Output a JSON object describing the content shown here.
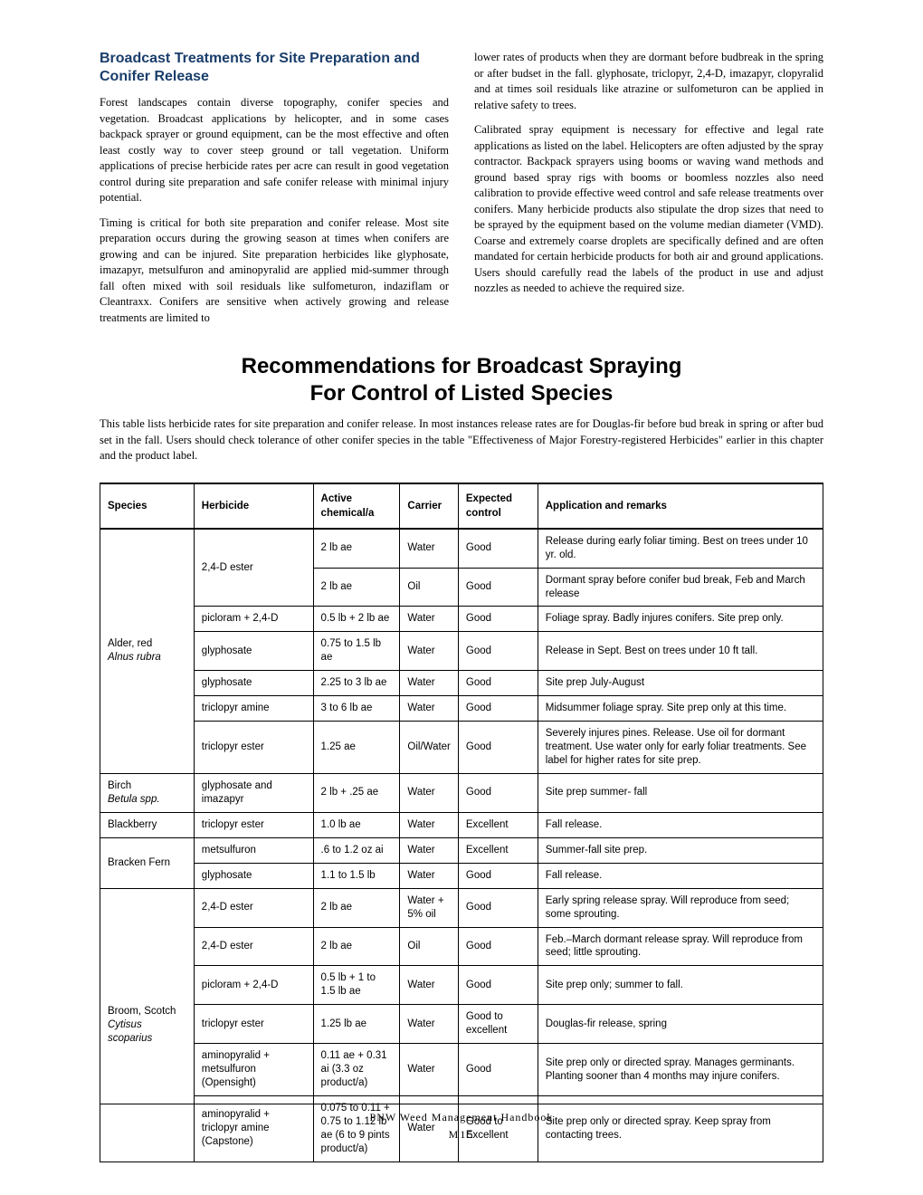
{
  "header": {
    "section_title": "Broadcast Treatments for Site Preparation and Conifer Release"
  },
  "col1": {
    "p1": "Forest landscapes contain diverse topography, conifer species and vegetation. Broadcast applications by helicopter, and in some cases backpack sprayer or ground equipment, can be the most effective and often least costly way to cover steep ground or tall vegetation. Uniform applications of precise herbicide rates per acre can result in good vegetation control during site preparation and safe conifer release with minimal injury potential.",
    "p2": "Timing is critical for both site preparation and conifer release. Most site preparation occurs during the growing season at times when conifers are growing and can be injured. Site preparation herbicides like glyphosate, imazapyr, metsulfuron and aminopyralid are applied mid-summer through fall often mixed with soil residuals like sulfometuron, indaziflam or Cleantraxx. Conifers are sensitive when actively growing and release treatments are limited to"
  },
  "col2": {
    "p1": "lower rates of products when they are dormant before budbreak in the spring or after budset in the fall. glyphosate, triclopyr, 2,4-D, imazapyr, clopyralid and at times soil residuals like atrazine or sulfometuron can be applied in relative safety to trees.",
    "p2": "Calibrated spray equipment is necessary for effective and legal rate applications as listed on the label. Helicopters are often adjusted by the spray contractor. Backpack sprayers using booms or waving wand methods and ground based spray rigs with booms or boomless nozzles also need calibration to provide effective weed control and safe release treatments over conifers. Many herbicide products also stipulate the drop sizes that need to be sprayed by the equipment based on the volume median diameter (VMD). Coarse and extremely coarse droplets are specifically defined and are often mandated for certain herbicide products for both air and ground applications. Users should carefully read the labels of the product in use and adjust nozzles as needed to achieve the required size."
  },
  "main_title": "Recommendations for Broadcast Spraying For Control of Listed Species",
  "intro": "This table lists herbicide rates for site preparation and conifer release. In most instances release rates are for Douglas-fir before bud break in spring or after bud set in the fall. Users should check tolerance of other conifer species in the table \"Effectiveness of Major Forestry-registered Herbicides\" earlier in this chapter and the product label.",
  "table": {
    "columns": [
      "Species",
      "Herbicide",
      "Active chemical/a",
      "Carrier",
      "Expected control",
      "Application and remarks"
    ],
    "col_widths": [
      "13%",
      "16.5%",
      "12%",
      "8%",
      "11%",
      "39.5%"
    ],
    "rows": [
      {
        "species": "Alder, red\nAlnus rubra",
        "species_rowspan": 7,
        "herbicide": "2,4-D ester",
        "herb_rowspan": 2,
        "active": "2 lb ae",
        "carrier": "Water",
        "control": "Good",
        "remarks": "Release during early foliar timing. Best on trees under 10 yr. old."
      },
      {
        "active": "2 lb ae",
        "carrier": "Oil",
        "control": "Good",
        "remarks": "Dormant spray before conifer bud break, Feb and March release"
      },
      {
        "herbicide": "picloram + 2,4-D",
        "active": "0.5 lb + 2 lb ae",
        "carrier": "Water",
        "control": "Good",
        "remarks": "Foliage spray. Badly injures conifers. Site prep only."
      },
      {
        "herbicide": "glyphosate",
        "active": "0.75 to 1.5 lb ae",
        "carrier": "Water",
        "control": "Good",
        "remarks": "Release in Sept. Best on trees under 10 ft tall."
      },
      {
        "herbicide": "glyphosate",
        "active": "2.25 to 3 lb ae",
        "carrier": "Water",
        "control": "Good",
        "remarks": "Site prep July-August"
      },
      {
        "herbicide": "triclopyr amine",
        "active": "3 to 6 lb ae",
        "carrier": "Water",
        "control": "Good",
        "remarks": "Midsummer foliage spray. Site prep only at this time."
      },
      {
        "herbicide": "triclopyr ester",
        "active": "1.25  ae",
        "carrier": "Oil/Water",
        "control": "Good",
        "remarks": "Severely injures pines. Release. Use oil for dormant treatment. Use water only for early foliar treatments. See label for higher rates for site prep."
      },
      {
        "species": "Birch\nBetula spp.",
        "species_rowspan": 1,
        "species_italic_line": 1,
        "herbicide": "glyphosate and imazapyr",
        "active": "2 lb + .25 ae",
        "carrier": "Water",
        "control": "Good",
        "remarks": "Site prep summer- fall"
      },
      {
        "species": "Blackberry",
        "species_rowspan": 1,
        "herbicide": "triclopyr ester",
        "active": "1.0 lb ae",
        "carrier": "Water",
        "control": "Excellent",
        "remarks": "Fall release."
      },
      {
        "species": "Bracken Fern",
        "species_rowspan": 2,
        "herbicide": "metsulfuron",
        "active": ".6 to 1.2 oz ai",
        "carrier": "Water",
        "control": "Excellent",
        "remarks": "Summer-fall site prep."
      },
      {
        "herbicide": "glyphosate",
        "active": "1.1 to 1.5 lb",
        "carrier": "Water",
        "control": "Good",
        "remarks": "Fall release."
      },
      {
        "species": "Broom, Scotch\nCytisus scoparius",
        "species_rowspan": 6,
        "herbicide": "2,4-D ester",
        "active": "2 lb ae",
        "carrier": "Water + 5% oil",
        "control": "Good",
        "remarks": "Early spring release spray. Will reproduce from seed; some sprouting."
      },
      {
        "herbicide": "2,4-D ester",
        "active": "2 lb ae",
        "carrier": "Oil",
        "control": "Good",
        "remarks": "Feb.–March dormant release spray. Will reproduce from seed; little sprouting."
      },
      {
        "herbicide": "picloram + 2,4-D",
        "active": "0.5 lb + 1 to 1.5 lb ae",
        "carrier": "Water",
        "control": "Good",
        "remarks": "Site prep only; summer to fall."
      },
      {
        "herbicide": "triclopyr ester",
        "active": "1.25 lb ae",
        "carrier": "Water",
        "control": "Good to excellent",
        "remarks": "Douglas-fir release, spring"
      },
      {
        "herbicide": "aminopyralid + metsulfuron (Opensight)",
        "active": "0.11 ae + 0.31 ai (3.3 oz product/a)",
        "carrier": "Water",
        "control": "Good",
        "remarks": "Site prep only or directed spray. Manages germinants. Planting sooner than 4 months may injure conifers."
      },
      {
        "herbicide": "aminopyralid + triclopyr amine\n(Capstone)",
        "active": "0.075 to 0.11 + 0.75 to 1.12 lb ae (6 to 9 pints product/a)",
        "carrier": "Water",
        "control": "Good to Excellent",
        "remarks": "Site prep only or directed spray.  Keep spray from contacting trees."
      }
    ]
  },
  "footer": {
    "book": "PNW Weed Management Handbook",
    "page": "M15"
  }
}
